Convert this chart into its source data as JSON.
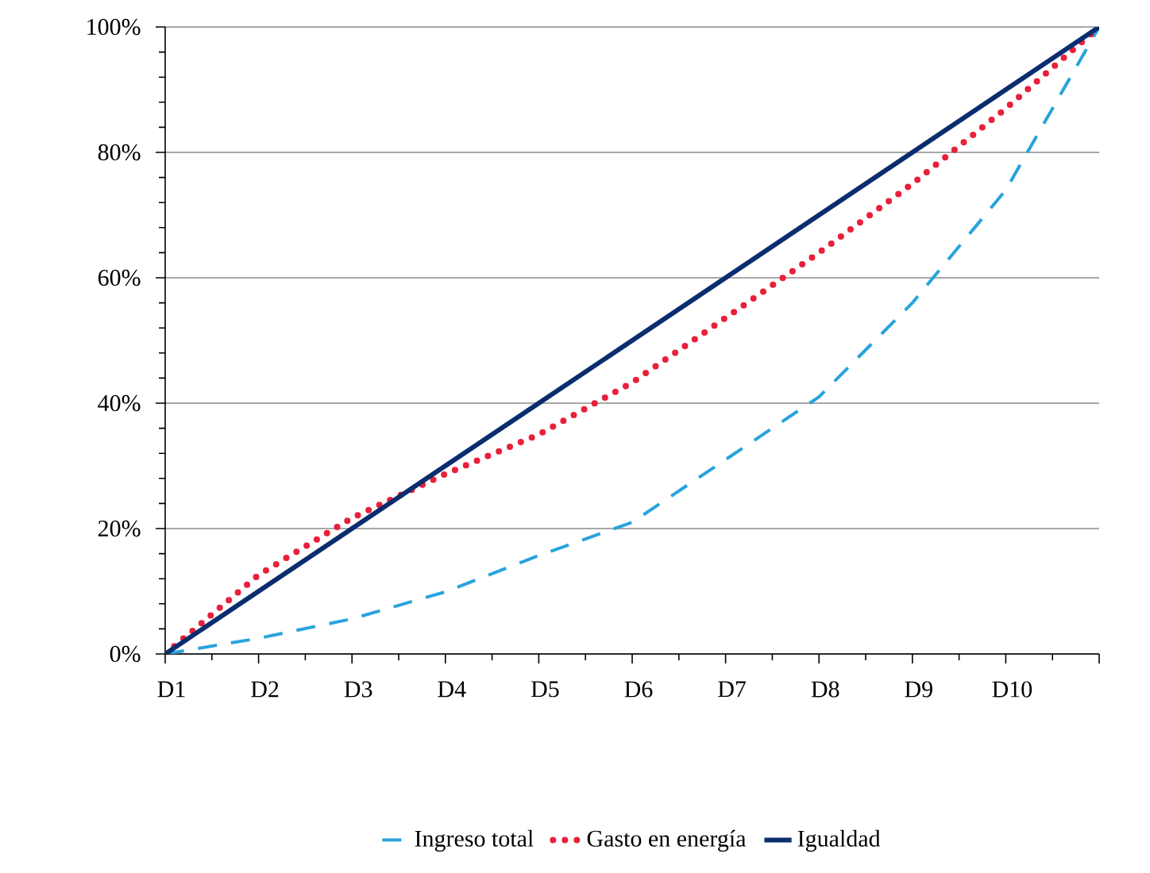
{
  "chart_data": {
    "type": "line",
    "categories": [
      "D1",
      "D2",
      "D3",
      "D4",
      "D5",
      "D6",
      "D7",
      "D8",
      "D9",
      "D10",
      null
    ],
    "series": [
      {
        "name": "Ingreso total",
        "color": "#29a3dc",
        "line_style": "dashed",
        "values": [
          0,
          2.5,
          5.6,
          9.9,
          15.7,
          21,
          31,
          41,
          56,
          74,
          100
        ]
      },
      {
        "name": "Gasto en energía",
        "color": "#e8203a",
        "line_style": "dotted",
        "values": [
          0,
          12.6,
          21.7,
          28.7,
          35,
          43.3,
          53.6,
          64,
          75,
          87,
          100
        ]
      },
      {
        "name": "Igualdad",
        "color": "#0a2d6e",
        "line_style": "solid",
        "values": [
          0,
          10,
          20,
          30,
          40,
          50,
          60,
          70,
          80,
          90,
          100
        ]
      }
    ],
    "ylim": [
      0,
      100
    ],
    "yticks": [
      {
        "value": 0,
        "label": "0%"
      },
      {
        "value": 20,
        "label": "20%"
      },
      {
        "value": 40,
        "label": "40%"
      },
      {
        "value": 60,
        "label": "60%"
      },
      {
        "value": 80,
        "label": "80%"
      },
      {
        "value": 100,
        "label": "100%"
      }
    ],
    "grid": "y",
    "legend": "bottom",
    "marker": "none"
  }
}
